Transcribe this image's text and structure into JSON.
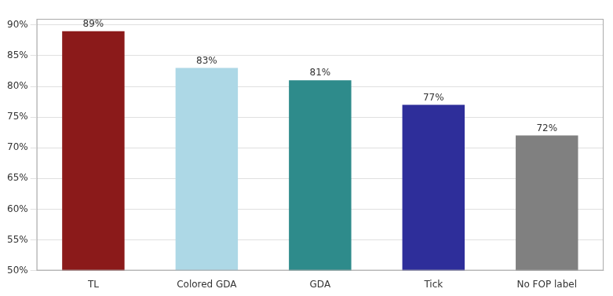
{
  "chart_data": {
    "type": "bar",
    "categories": [
      "TL",
      "Colored GDA",
      "GDA",
      "Tick",
      "No FOP label"
    ],
    "values": [
      89,
      83,
      81,
      77,
      72
    ],
    "value_labels": [
      "89%",
      "83%",
      "81%",
      "77%",
      "72%"
    ],
    "colors": [
      "#8B1A1A",
      "#ADD8E6",
      "#2E8B8B",
      "#2E2E9A",
      "#808080"
    ],
    "ylim": [
      50,
      91
    ],
    "yticks": [
      {
        "value": 50,
        "label": "50%"
      },
      {
        "value": 55,
        "label": "55%"
      },
      {
        "value": 60,
        "label": "60%"
      },
      {
        "value": 65,
        "label": "65%"
      },
      {
        "value": 70,
        "label": "70%"
      },
      {
        "value": 75,
        "label": "75%"
      },
      {
        "value": 80,
        "label": "80%"
      },
      {
        "value": 85,
        "label": "85%"
      },
      {
        "value": 90,
        "label": "90%"
      }
    ],
    "grid": true,
    "data_labels": true
  }
}
